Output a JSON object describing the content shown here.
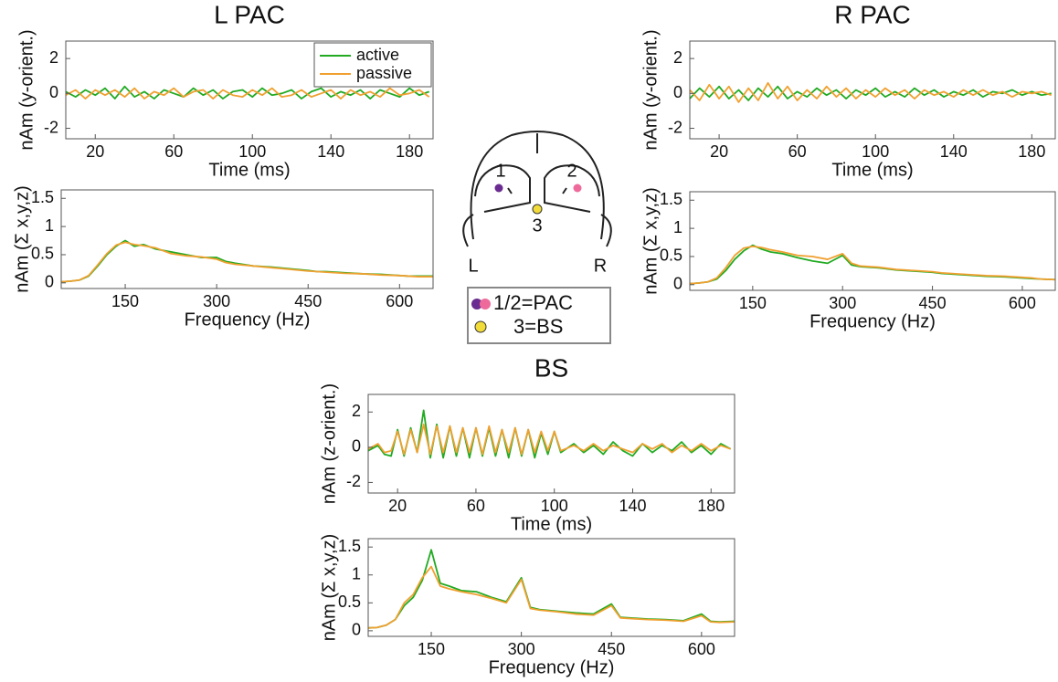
{
  "diagram": {
    "labels": [
      "1",
      "2",
      "3",
      "L",
      "R"
    ],
    "legend": [
      "1/2=PAC",
      "3=BS"
    ]
  },
  "chart_data": [
    {
      "type": "line",
      "title": "L PAC",
      "xlabel": "Time (ms)",
      "ylabel": "nAm (y-orient.)",
      "x": [
        5,
        10,
        15,
        20,
        25,
        30,
        35,
        40,
        45,
        50,
        55,
        60,
        65,
        70,
        75,
        80,
        85,
        90,
        95,
        100,
        105,
        110,
        115,
        120,
        125,
        130,
        135,
        140,
        145,
        150,
        155,
        160,
        165,
        170,
        175,
        180,
        185,
        190
      ],
      "series": [
        {
          "name": "active",
          "color": "#22aa22",
          "values": [
            0.1,
            -0.2,
            0.2,
            -0.1,
            0.3,
            -0.3,
            0.4,
            -0.2,
            0.1,
            -0.3,
            0.2,
            0,
            -0.2,
            0.3,
            -0.1,
            0.2,
            -0.3,
            0.1,
            0.2,
            -0.2,
            0.3,
            -0.1,
            0,
            0.2,
            -0.3,
            0.1,
            0.3,
            -0.2,
            0.1,
            -0.1,
            0.2,
            -0.3,
            0.2,
            0,
            -0.2,
            0.3,
            -0.1,
            0.1
          ]
        },
        {
          "name": "passive",
          "color": "#f0a030",
          "values": [
            -0.1,
            0.2,
            -0.3,
            0.2,
            -0.1,
            0.2,
            -0.2,
            0.3,
            -0.3,
            0.1,
            -0.1,
            0.3,
            -0.2,
            0.1,
            0.2,
            -0.3,
            0.2,
            -0.1,
            -0.2,
            0.2,
            -0.1,
            0.3,
            -0.2,
            -0.1,
            0.2,
            -0.2,
            0,
            0.2,
            -0.3,
            0.2,
            -0.1,
            0.1,
            -0.2,
            0.3,
            -0.1,
            0,
            0.2,
            -0.2
          ]
        }
      ],
      "xlim": [
        5,
        192
      ],
      "ylim": [
        -2.6,
        3
      ],
      "xticks": [
        20,
        60,
        100,
        140,
        180
      ],
      "yticks": [
        -2,
        0,
        2
      ],
      "legend": "upper right"
    },
    {
      "type": "line",
      "xlabel": "Frequency (Hz)",
      "ylabel": "nAm (Σ x,y,z)",
      "x": [
        45,
        60,
        75,
        90,
        105,
        120,
        135,
        150,
        165,
        180,
        200,
        225,
        250,
        275,
        300,
        315,
        330,
        360,
        390,
        420,
        450,
        465,
        480,
        510,
        540,
        570,
        600,
        615,
        630,
        655
      ],
      "series": [
        {
          "color": "#22aa22",
          "values": [
            0.02,
            0.03,
            0.05,
            0.12,
            0.3,
            0.5,
            0.65,
            0.75,
            0.65,
            0.68,
            0.6,
            0.55,
            0.5,
            0.45,
            0.45,
            0.38,
            0.35,
            0.3,
            0.28,
            0.25,
            0.22,
            0.2,
            0.2,
            0.18,
            0.16,
            0.15,
            0.13,
            0.12,
            0.12,
            0.12
          ]
        },
        {
          "color": "#f0a030",
          "values": [
            0.02,
            0.03,
            0.05,
            0.13,
            0.32,
            0.52,
            0.67,
            0.72,
            0.68,
            0.66,
            0.62,
            0.52,
            0.48,
            0.46,
            0.42,
            0.36,
            0.33,
            0.3,
            0.27,
            0.24,
            0.21,
            0.2,
            0.19,
            0.17,
            0.16,
            0.14,
            0.13,
            0.12,
            0.11,
            0.11
          ]
        }
      ],
      "xlim": [
        45,
        655
      ],
      "ylim": [
        -0.1,
        1.65
      ],
      "xticks": [
        150,
        300,
        450,
        600
      ],
      "yticks": [
        0,
        0.5,
        1,
        1.5
      ]
    },
    {
      "type": "line",
      "title": "R PAC",
      "xlabel": "Time (ms)",
      "ylabel": "nAm (y-orient.)",
      "x": [
        5,
        10,
        15,
        20,
        25,
        30,
        35,
        40,
        45,
        50,
        55,
        60,
        65,
        70,
        75,
        80,
        85,
        90,
        95,
        100,
        105,
        110,
        115,
        120,
        125,
        130,
        135,
        140,
        145,
        150,
        155,
        160,
        165,
        170,
        175,
        180,
        185,
        190
      ],
      "series": [
        {
          "color": "#22aa22",
          "values": [
            -0.3,
            0.3,
            -0.2,
            0.4,
            -0.3,
            0.2,
            -0.4,
            0.3,
            -0.2,
            0.4,
            -0.3,
            0.1,
            -0.2,
            0.3,
            -0.1,
            0.2,
            -0.3,
            0.2,
            -0.1,
            0.3,
            -0.2,
            0.1,
            -0.2,
            0.3,
            -0.1,
            0.2,
            -0.2,
            0.1,
            -0.1,
            0.2,
            -0.2,
            0.1,
            0,
            0.2,
            -0.1,
            0.1,
            -0.1,
            0
          ]
        },
        {
          "color": "#f0a030",
          "values": [
            0.2,
            -0.4,
            0.5,
            -0.3,
            0.4,
            -0.5,
            0.3,
            -0.4,
            0.6,
            -0.3,
            0.4,
            -0.4,
            0.2,
            -0.3,
            0.4,
            -0.2,
            0.3,
            -0.3,
            0.2,
            -0.2,
            0.3,
            -0.1,
            0.2,
            -0.3,
            0.2,
            -0.1,
            0.1,
            -0.2,
            0.2,
            -0.1,
            0.2,
            -0.1,
            0.1,
            -0.2,
            0.1,
            0,
            0.1,
            -0.1
          ]
        }
      ],
      "xlim": [
        5,
        192
      ],
      "ylim": [
        -2.6,
        3
      ],
      "xticks": [
        20,
        60,
        100,
        140,
        180
      ],
      "yticks": [
        -2,
        0,
        2
      ]
    },
    {
      "type": "line",
      "xlabel": "Frequency (Hz)",
      "ylabel": "nAm (Σ x,y,z)",
      "x": [
        45,
        60,
        75,
        90,
        105,
        120,
        135,
        150,
        165,
        180,
        200,
        225,
        250,
        275,
        300,
        315,
        330,
        360,
        390,
        420,
        450,
        465,
        480,
        510,
        540,
        570,
        600,
        615,
        630,
        655
      ],
      "series": [
        {
          "color": "#22aa22",
          "values": [
            0.02,
            0.03,
            0.05,
            0.1,
            0.25,
            0.45,
            0.6,
            0.7,
            0.63,
            0.58,
            0.55,
            0.48,
            0.42,
            0.38,
            0.52,
            0.35,
            0.32,
            0.3,
            0.26,
            0.24,
            0.22,
            0.2,
            0.19,
            0.17,
            0.15,
            0.14,
            0.12,
            0.11,
            0.1,
            0.09
          ]
        },
        {
          "color": "#f0a030",
          "values": [
            0.02,
            0.03,
            0.05,
            0.12,
            0.3,
            0.52,
            0.65,
            0.68,
            0.66,
            0.62,
            0.58,
            0.52,
            0.5,
            0.45,
            0.55,
            0.38,
            0.33,
            0.31,
            0.27,
            0.25,
            0.23,
            0.21,
            0.2,
            0.18,
            0.16,
            0.15,
            0.13,
            0.12,
            0.1,
            0.09
          ]
        }
      ],
      "xlim": [
        45,
        655
      ],
      "ylim": [
        -0.1,
        1.65
      ],
      "xticks": [
        150,
        300,
        450,
        600
      ],
      "yticks": [
        0,
        0.5,
        1,
        1.5
      ]
    },
    {
      "type": "line",
      "title": "BS",
      "xlabel": "Time (ms)",
      "ylabel": "nAm (z-orient.)",
      "x": [
        5,
        10,
        13.3,
        16.7,
        20,
        23.3,
        26.7,
        30,
        33.3,
        36.7,
        40,
        43.3,
        46.7,
        50,
        53.3,
        56.7,
        60,
        63.3,
        66.7,
        70,
        73.3,
        76.7,
        80,
        83.3,
        86.7,
        90,
        93.3,
        96.7,
        100,
        103.3,
        110,
        115,
        120,
        125,
        130,
        135,
        140,
        145,
        150,
        155,
        160,
        165,
        170,
        175,
        180,
        185,
        190
      ],
      "series": [
        {
          "color": "#22aa22",
          "values": [
            -0.2,
            0.1,
            -0.4,
            -0.5,
            1.0,
            -0.5,
            1.1,
            -0.3,
            2.1,
            -0.6,
            1.3,
            -0.6,
            1.2,
            -0.5,
            1.1,
            -0.6,
            1.1,
            -0.5,
            1.1,
            -0.5,
            1.0,
            -0.6,
            1.1,
            -0.5,
            1.0,
            -0.6,
            0.8,
            -0.4,
            0.9,
            -0.3,
            0.2,
            -0.3,
            0.1,
            -0.4,
            0.3,
            -0.2,
            -0.5,
            0.2,
            -0.3,
            0.1,
            -0.2,
            0.3,
            -0.3,
            0.1,
            -0.4,
            0.2,
            -0.1
          ]
        },
        {
          "color": "#f0a030",
          "values": [
            -0.1,
            0.2,
            -0.3,
            -0.2,
            0.9,
            -0.4,
            1.0,
            -0.3,
            1.3,
            -0.4,
            1.2,
            -0.3,
            1.2,
            -0.3,
            1.1,
            -0.3,
            1.1,
            -0.4,
            1.2,
            -0.3,
            1.0,
            -0.3,
            1.1,
            -0.4,
            1.0,
            -0.3,
            0.9,
            -0.2,
            0.9,
            -0.2,
            0.1,
            -0.2,
            0.2,
            -0.2,
            0.1,
            -0.1,
            -0.3,
            0.2,
            -0.1,
            0.2,
            -0.3,
            0.1,
            -0.2,
            0.2,
            -0.2,
            0.1,
            -0.1
          ]
        }
      ],
      "xlim": [
        5,
        192
      ],
      "ylim": [
        -2.6,
        3
      ],
      "xticks": [
        20,
        60,
        100,
        140,
        180
      ],
      "yticks": [
        -2,
        0,
        2
      ]
    },
    {
      "type": "line",
      "xlabel": "Frequency (Hz)",
      "ylabel": "nAm (Σ x,y,z)",
      "x": [
        45,
        60,
        75,
        90,
        105,
        120,
        135,
        150,
        165,
        180,
        200,
        225,
        250,
        275,
        300,
        315,
        330,
        360,
        390,
        420,
        450,
        465,
        480,
        510,
        540,
        570,
        600,
        615,
        630,
        655
      ],
      "series": [
        {
          "color": "#22aa22",
          "values": [
            0.05,
            0.06,
            0.1,
            0.2,
            0.45,
            0.6,
            0.9,
            1.45,
            0.85,
            0.8,
            0.72,
            0.7,
            0.6,
            0.52,
            0.95,
            0.42,
            0.38,
            0.35,
            0.32,
            0.3,
            0.48,
            0.24,
            0.23,
            0.21,
            0.2,
            0.18,
            0.3,
            0.17,
            0.16,
            0.17
          ]
        },
        {
          "color": "#f0a030",
          "values": [
            0.05,
            0.06,
            0.1,
            0.2,
            0.5,
            0.65,
            0.95,
            1.15,
            0.8,
            0.75,
            0.7,
            0.65,
            0.58,
            0.5,
            0.92,
            0.4,
            0.37,
            0.34,
            0.3,
            0.28,
            0.45,
            0.23,
            0.22,
            0.2,
            0.19,
            0.17,
            0.27,
            0.16,
            0.15,
            0.16
          ]
        }
      ],
      "xlim": [
        45,
        655
      ],
      "ylim": [
        -0.1,
        1.65
      ],
      "xticks": [
        150,
        300,
        450,
        600
      ],
      "yticks": [
        0,
        0.5,
        1,
        1.5
      ]
    }
  ]
}
